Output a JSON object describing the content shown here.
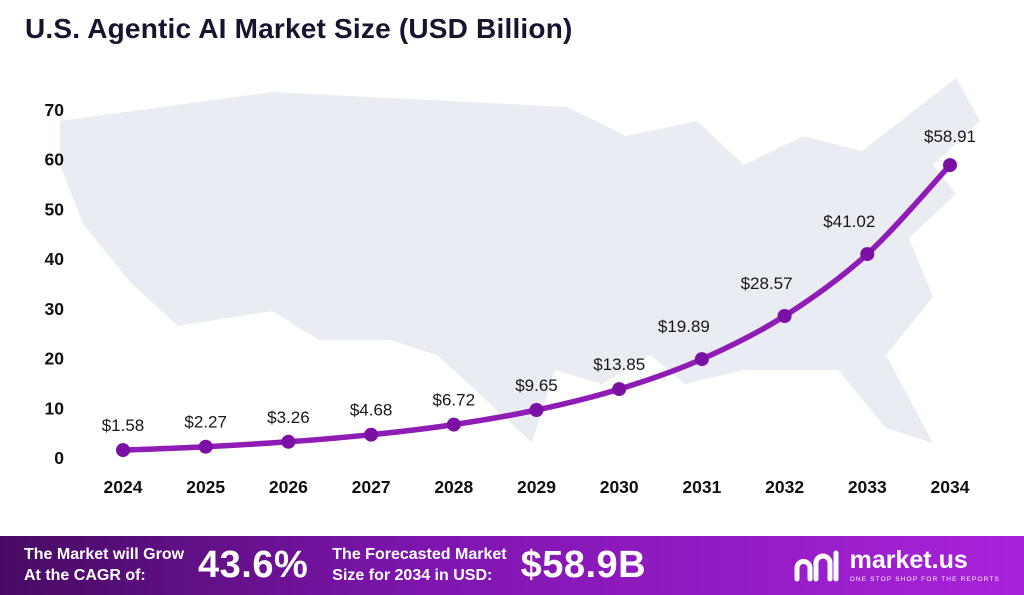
{
  "title": "U.S. Agentic AI Market Size (USD Billion)",
  "chart_data": {
    "type": "line",
    "title": "U.S. Agentic AI Market Size (USD Billion)",
    "x": [
      2024,
      2025,
      2026,
      2027,
      2028,
      2029,
      2030,
      2031,
      2032,
      2033,
      2034
    ],
    "series": [
      {
        "name": "U.S. Agentic AI Market Size (USD Billion)",
        "values": [
          1.58,
          2.27,
          3.26,
          4.68,
          6.72,
          9.65,
          13.85,
          19.89,
          28.57,
          41.02,
          58.91
        ]
      }
    ],
    "labels": [
      "$1.58",
      "$2.27",
      "$3.26",
      "$4.68",
      "$6.72",
      "$9.65",
      "$13.85",
      "$19.89",
      "$28.57",
      "$41.02",
      "$58.91"
    ],
    "xlabel": "",
    "ylabel": "",
    "ylim": [
      0,
      70
    ],
    "yticks": [
      0,
      10,
      20,
      30,
      40,
      50,
      60,
      70
    ],
    "grid": false,
    "legend": "none",
    "line_color": "#8e1cb5",
    "point_color": "#7b10a4",
    "background": "us-map-silhouette"
  },
  "banner": {
    "cagr": {
      "line1": "The Market will Grow",
      "line2": "At the CAGR of:",
      "value": "43.6%"
    },
    "forecast": {
      "line1": "The Forecasted Market",
      "line2": "Size for 2034 in USD:",
      "value": "$58.9B"
    },
    "logo": {
      "name": "market.us",
      "tagline": "ONE STOP SHOP FOR THE REPORTS"
    },
    "gradient": [
      "#470a62",
      "#7d15ad",
      "#a822da"
    ]
  }
}
